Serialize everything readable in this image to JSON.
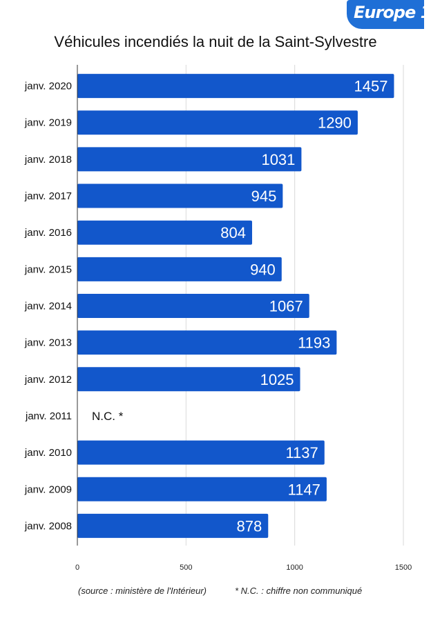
{
  "logo": {
    "text": "Europe 1"
  },
  "chart_data": {
    "type": "bar",
    "orientation": "horizontal",
    "title": "Véhicules incendiés la nuit de la Saint-Sylvestre",
    "categories": [
      "janv. 2020",
      "janv. 2019",
      "janv. 2018",
      "janv. 2017",
      "janv. 2016",
      "janv. 2015",
      "janv. 2014",
      "janv. 2013",
      "janv. 2012",
      "janv. 2011",
      "janv. 2010",
      "janv. 2009",
      "janv. 2008"
    ],
    "values": [
      1457,
      1290,
      1031,
      945,
      804,
      940,
      1067,
      1193,
      1025,
      null,
      1137,
      1147,
      878
    ],
    "data_labels": [
      "1457",
      "1290",
      "1031",
      "945",
      "804",
      "940",
      "1067",
      "1193",
      "1025",
      "N.C. *",
      "1137",
      "1147",
      "878"
    ],
    "xlim": [
      0,
      1500
    ],
    "xticks": [
      0,
      500,
      1000,
      1500
    ],
    "grid": true,
    "bar_color": "#1257cb",
    "source_note": "(source : ministère de l'Intérieur)",
    "footnote": "* N.C. : chiffre non communiqué"
  }
}
